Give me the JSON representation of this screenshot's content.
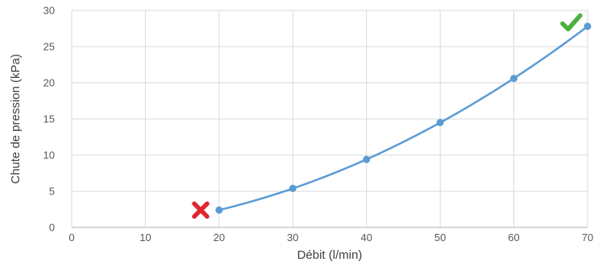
{
  "chart_data": {
    "type": "scatter",
    "xlabel": "Débit (l/min)",
    "ylabel": "Chute de pression  (kPa)",
    "xlim": [
      0,
      70
    ],
    "ylim": [
      0,
      30
    ],
    "xticks": [
      "0",
      "10",
      "20",
      "30",
      "40",
      "50",
      "60",
      "70"
    ],
    "yticks": [
      "0",
      "5",
      "10",
      "15",
      "20",
      "25",
      "30"
    ],
    "grid": true,
    "legend": "none",
    "series": [
      {
        "x": [
          20,
          30,
          40,
          50,
          60,
          70
        ],
        "y": [
          2.4,
          5.4,
          9.4,
          14.5,
          20.6,
          27.8
        ],
        "color": "#5b9bd5",
        "trendline": "polynomial"
      }
    ],
    "annotations": [
      {
        "icon": "cross-mark-icon",
        "color": "#e0262e",
        "x": 17.5,
        "y": 2.4
      },
      {
        "icon": "check-mark-icon",
        "color": "#4caf3e",
        "x": 67.8,
        "y": 28.3
      }
    ],
    "colors": {
      "grid": "#d9d9d9",
      "axis": "#bfbfbf",
      "text": "#595959"
    }
  }
}
